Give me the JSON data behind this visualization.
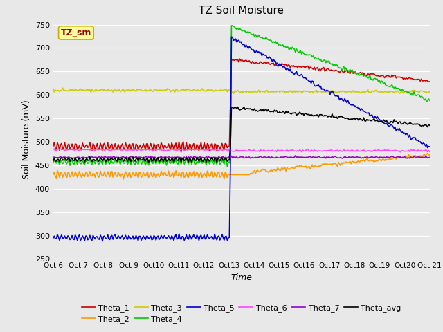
{
  "title": "TZ Soil Moisture",
  "xlabel": "Time",
  "ylabel": "Soil Moisture (mV)",
  "ylim": [
    250,
    760
  ],
  "yticks": [
    250,
    300,
    350,
    400,
    450,
    500,
    550,
    600,
    650,
    700,
    750
  ],
  "bg_color": "#e8e8e8",
  "series": {
    "Theta_1": {
      "color": "#cc0000",
      "lw": 1.2
    },
    "Theta_2": {
      "color": "#ff9900",
      "lw": 1.2
    },
    "Theta_3": {
      "color": "#cccc00",
      "lw": 1.2
    },
    "Theta_4": {
      "color": "#00cc00",
      "lw": 1.2
    },
    "Theta_5": {
      "color": "#0000cc",
      "lw": 1.2
    },
    "Theta_6": {
      "color": "#ff44ff",
      "lw": 1.2
    },
    "Theta_7": {
      "color": "#9900cc",
      "lw": 1.2
    },
    "Theta_avg": {
      "color": "#000000",
      "lw": 1.2
    }
  },
  "label_box": {
    "text": "TZ_sm",
    "text_color": "#990000",
    "bg_color": "#ffff99",
    "border_color": "#ccaa00",
    "fontsize": 9
  },
  "xtick_labels": [
    "Oct 6",
    "Oct 7",
    "Oct 8",
    "Oct 9",
    "Oct 10",
    "Oct 11",
    "Oct 12",
    "Oct 13",
    "Oct 14",
    "Oct 15",
    "Oct 16",
    "Oct 17",
    "Oct 18",
    "Oct 19",
    "Oct 20",
    "Oct 21"
  ],
  "xtick_labels_compressed": [
    "Oct 6",
    "Oct 7",
    "Oct 8",
    "Oct 9",
    "Oct10",
    "Oct11",
    "Oct12",
    "Oct13",
    "Oct14",
    "Oct15",
    "Oct16",
    "Oct17",
    "Oct18",
    "Oct19",
    "Oct20",
    "Oct 21"
  ]
}
